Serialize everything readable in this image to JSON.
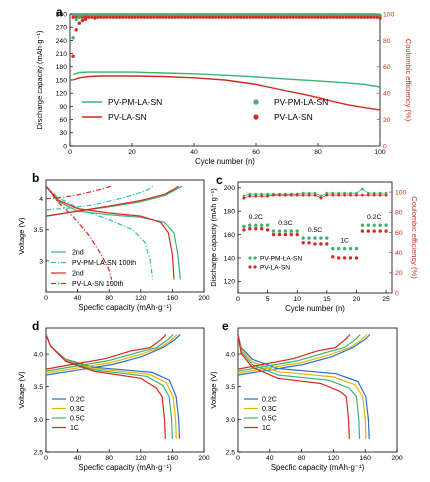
{
  "colors": {
    "green": "#3cb371",
    "red": "#d42a1e",
    "teal": "#2ec4b6",
    "gold": "#e8b300",
    "blue": "#2a6fcf",
    "axis": "#000000"
  },
  "chart_data": [
    {
      "panel": "a",
      "type": "scatter-line",
      "xlabel": "Cycle number (n)",
      "ylabel": "Discharge capacity (mAh·g⁻¹)",
      "y2label": "Coulombic efficiency (%)",
      "xlim": [
        0,
        100
      ],
      "ylim": [
        0,
        300
      ],
      "y2lim": [
        0,
        100
      ],
      "xticks": [
        "0",
        "20",
        "40",
        "60",
        "80",
        "100"
      ],
      "yticks": [
        "0",
        "30",
        "60",
        "90",
        "120",
        "150",
        "180",
        "210",
        "240",
        "270",
        "300"
      ],
      "y2ticks": [
        "0",
        "20",
        "40",
        "60",
        "80",
        "100"
      ],
      "legend": [
        "PV-PM-LA-SN",
        "PV-LA-SN",
        "PV-PM-LA-SN",
        "PV-LA-SN"
      ],
      "series": [
        {
          "name": "PV-PM-LA-SN",
          "axis": "left",
          "style": "line",
          "color": "green",
          "x": [
            1,
            3,
            6,
            10,
            20,
            30,
            40,
            50,
            60,
            70,
            80,
            90,
            95,
            100
          ],
          "y": [
            163,
            167,
            168,
            168,
            168,
            166,
            164,
            161,
            157,
            152,
            148,
            143,
            140,
            134
          ]
        },
        {
          "name": "PV-LA-SN",
          "axis": "left",
          "style": "line",
          "color": "red",
          "x": [
            1,
            3,
            6,
            10,
            20,
            30,
            40,
            50,
            60,
            70,
            75,
            80,
            85,
            90,
            95,
            100
          ],
          "y": [
            150,
            155,
            158,
            159,
            159,
            158,
            155,
            150,
            140,
            125,
            118,
            110,
            101,
            93,
            87,
            82
          ]
        },
        {
          "name": "PV-PM-LA-SN",
          "axis": "right",
          "style": "points",
          "color": "green",
          "x": [
            1,
            2,
            3,
            4,
            100
          ],
          "y": [
            82,
            96,
            98,
            99,
            99
          ]
        },
        {
          "name": "PV-LA-SN",
          "axis": "right",
          "style": "points",
          "color": "red",
          "x": [
            1,
            2,
            3,
            4,
            5,
            8,
            100
          ],
          "y": [
            68,
            88,
            93,
            95,
            96,
            97,
            97
          ]
        }
      ]
    },
    {
      "panel": "b",
      "type": "line",
      "xlabel": "Specfic capacity (mAh·g⁻¹)",
      "ylabel": "Voltage (V)",
      "xlim": [
        0,
        200
      ],
      "ylim": [
        2.5,
        4.3
      ],
      "xticks": [
        "0",
        "40",
        "80",
        "120",
        "160",
        "200"
      ],
      "yticks": [
        "3",
        "3.5",
        "4"
      ],
      "legend": [
        "2nd",
        "PV-PM-LA-SN 100th",
        "2nd",
        "PV-LA-SN 100th"
      ],
      "series": [
        {
          "name": "2nd",
          "color": "green",
          "dash": "solid",
          "charge": [
            [
              0,
              3.72
            ],
            [
              40,
              3.8
            ],
            [
              80,
              3.87
            ],
            [
              120,
              3.95
            ],
            [
              150,
              4.05
            ],
            [
              165,
              4.15
            ],
            [
              172,
              4.2
            ]
          ],
          "discharge": [
            [
              0,
              4.2
            ],
            [
              15,
              3.96
            ],
            [
              40,
              3.8
            ],
            [
              80,
              3.74
            ],
            [
              120,
              3.7
            ],
            [
              150,
              3.62
            ],
            [
              162,
              3.45
            ],
            [
              167,
              3.1
            ],
            [
              170,
              2.7
            ]
          ]
        },
        {
          "name": "PV-PM-LA-SN 100th",
          "color": "teal",
          "dash": "dashdot",
          "charge": [
            [
              0,
              3.82
            ],
            [
              30,
              3.85
            ],
            [
              60,
              3.9
            ],
            [
              100,
              4.02
            ],
            [
              120,
              4.1
            ],
            [
              130,
              4.15
            ],
            [
              135,
              4.2
            ]
          ],
          "discharge": [
            [
              0,
              4.2
            ],
            [
              15,
              4.02
            ],
            [
              45,
              3.82
            ],
            [
              80,
              3.66
            ],
            [
              110,
              3.5
            ],
            [
              125,
              3.3
            ],
            [
              132,
              3.0
            ],
            [
              135,
              2.7
            ]
          ]
        },
        {
          "name": "2nd",
          "color": "red",
          "dash": "solid",
          "charge": [
            [
              0,
              3.72
            ],
            [
              40,
              3.8
            ],
            [
              80,
              3.88
            ],
            [
              120,
              3.97
            ],
            [
              150,
              4.07
            ],
            [
              162,
              4.15
            ],
            [
              168,
              4.2
            ]
          ],
          "discharge": [
            [
              0,
              4.2
            ],
            [
              15,
              3.98
            ],
            [
              40,
              3.84
            ],
            [
              80,
              3.77
            ],
            [
              120,
              3.72
            ],
            [
              145,
              3.62
            ],
            [
              155,
              3.45
            ],
            [
              160,
              3.1
            ],
            [
              162,
              2.7
            ]
          ]
        },
        {
          "name": "PV-LA-SN 100th",
          "color": "red",
          "dash": "dashdot",
          "charge": [
            [
              0,
              4.0
            ],
            [
              20,
              4.02
            ],
            [
              40,
              4.06
            ],
            [
              60,
              4.12
            ],
            [
              75,
              4.17
            ],
            [
              82,
              4.2
            ]
          ],
          "discharge": [
            [
              0,
              4.2
            ],
            [
              15,
              3.95
            ],
            [
              35,
              3.7
            ],
            [
              55,
              3.4
            ],
            [
              70,
              3.1
            ],
            [
              80,
              2.85
            ],
            [
              83,
              2.7
            ]
          ]
        }
      ]
    },
    {
      "panel": "c",
      "type": "scatter",
      "xlabel": "Cycle number (n)",
      "ylabel": "Discharge capacity (mAh g⁻¹)",
      "y2label": "Coulombic efficiency (%)",
      "xlim": [
        0,
        26
      ],
      "ylim": [
        110,
        205
      ],
      "y2lim": [
        0,
        110
      ],
      "xticks": [
        "0",
        "5",
        "10",
        "15",
        "20",
        "25"
      ],
      "yticks": [
        "120",
        "140",
        "160",
        "180",
        "200"
      ],
      "y2ticks": [
        "0",
        "20",
        "40",
        "60",
        "80",
        "100"
      ],
      "annotations": [
        "0.2C",
        "0.3C",
        "0.5C",
        "1C",
        "0.2C"
      ],
      "legend": [
        "PV-PM-LA-SN",
        "PV-LA-SN"
      ],
      "series": [
        {
          "name": "PV-PM-LA-SN",
          "axis": "left",
          "color": "green",
          "x": [
            1,
            2,
            3,
            4,
            5,
            6,
            7,
            8,
            9,
            10,
            11,
            12,
            13,
            14,
            15,
            16,
            17,
            18,
            19,
            20,
            21,
            22,
            23,
            24,
            25
          ],
          "y": [
            167,
            168,
            168,
            168,
            168,
            163,
            163,
            163,
            163,
            163,
            157,
            157,
            157,
            157,
            157,
            148,
            148,
            148,
            148,
            148,
            168,
            168,
            168,
            168,
            168
          ]
        },
        {
          "name": "PV-LA-SN",
          "axis": "left",
          "color": "red",
          "x": [
            1,
            2,
            3,
            4,
            5,
            6,
            7,
            8,
            9,
            10,
            11,
            12,
            13,
            14,
            15,
            16,
            17,
            18,
            19,
            20,
            21,
            22,
            23,
            24,
            25
          ],
          "y": [
            164,
            165,
            165,
            165,
            164,
            160,
            160,
            160,
            160,
            160,
            153,
            153,
            152,
            152,
            152,
            141,
            140,
            140,
            140,
            140,
            163,
            163,
            163,
            163,
            163
          ]
        },
        {
          "name": "PV-PM-LA-SN CE",
          "axis": "right",
          "color": "green",
          "x": [
            1,
            2,
            3,
            4,
            5,
            6,
            7,
            8,
            9,
            10,
            11,
            12,
            13,
            14,
            15,
            16,
            17,
            18,
            19,
            20,
            21,
            22,
            23,
            24,
            25
          ],
          "y": [
            96,
            98,
            98,
            98,
            98,
            98,
            98,
            98,
            98,
            98,
            99,
            99,
            99,
            96,
            99,
            99,
            99,
            99,
            99,
            99,
            103,
            99,
            99,
            99,
            99
          ]
        },
        {
          "name": "PV-LA-SN CE",
          "axis": "right",
          "color": "red",
          "x": [
            1,
            2,
            3,
            4,
            5,
            6,
            7,
            8,
            9,
            10,
            11,
            12,
            13,
            14,
            15,
            16,
            17,
            18,
            19,
            20,
            21,
            22,
            23,
            24,
            25
          ],
          "y": [
            94,
            96,
            96,
            96,
            96,
            97,
            97,
            97,
            97,
            97,
            97,
            97,
            97,
            94,
            97,
            97,
            97,
            97,
            97,
            97,
            97,
            97,
            97,
            97,
            97
          ]
        }
      ]
    },
    {
      "panel": "d",
      "type": "line",
      "xlabel": "Specfic capacity (mAh·g⁻¹)",
      "ylabel": "Voltage (V)",
      "xlim": [
        0,
        200
      ],
      "ylim": [
        2.5,
        4.4
      ],
      "xticks": [
        "0",
        "40",
        "80",
        "120",
        "160",
        "200"
      ],
      "yticks": [
        "2.5",
        "3.0",
        "3.5",
        "4.0"
      ],
      "legend": [
        "0.2C",
        "0.3C",
        "0.5C",
        "1C"
      ],
      "series": [
        {
          "name": "0.2C",
          "color": "blue",
          "capacity": 168
        },
        {
          "name": "0.3C",
          "color": "gold",
          "capacity": 164
        },
        {
          "name": "0.5C",
          "color": "green",
          "capacity": 159
        },
        {
          "name": "1C",
          "color": "red",
          "capacity": 150
        }
      ]
    },
    {
      "panel": "e",
      "type": "line",
      "xlabel": "Specfic capacity (mAh·g⁻¹)",
      "ylabel": "Voltage (V)",
      "xlim": [
        0,
        200
      ],
      "ylim": [
        2.5,
        4.4
      ],
      "xticks": [
        "0",
        "40",
        "80",
        "120",
        "160",
        "200"
      ],
      "yticks": [
        "2.5",
        "3.0",
        "3.5",
        "4.0"
      ],
      "legend": [
        "0.2C",
        "0.3C",
        "0.5C",
        "1C"
      ],
      "series": [
        {
          "name": "0.2C",
          "color": "blue",
          "capacity": 164
        },
        {
          "name": "0.3C",
          "color": "gold",
          "capacity": 160
        },
        {
          "name": "0.5C",
          "color": "green",
          "capacity": 152
        },
        {
          "name": "1C",
          "color": "red",
          "capacity": 139
        }
      ]
    }
  ]
}
